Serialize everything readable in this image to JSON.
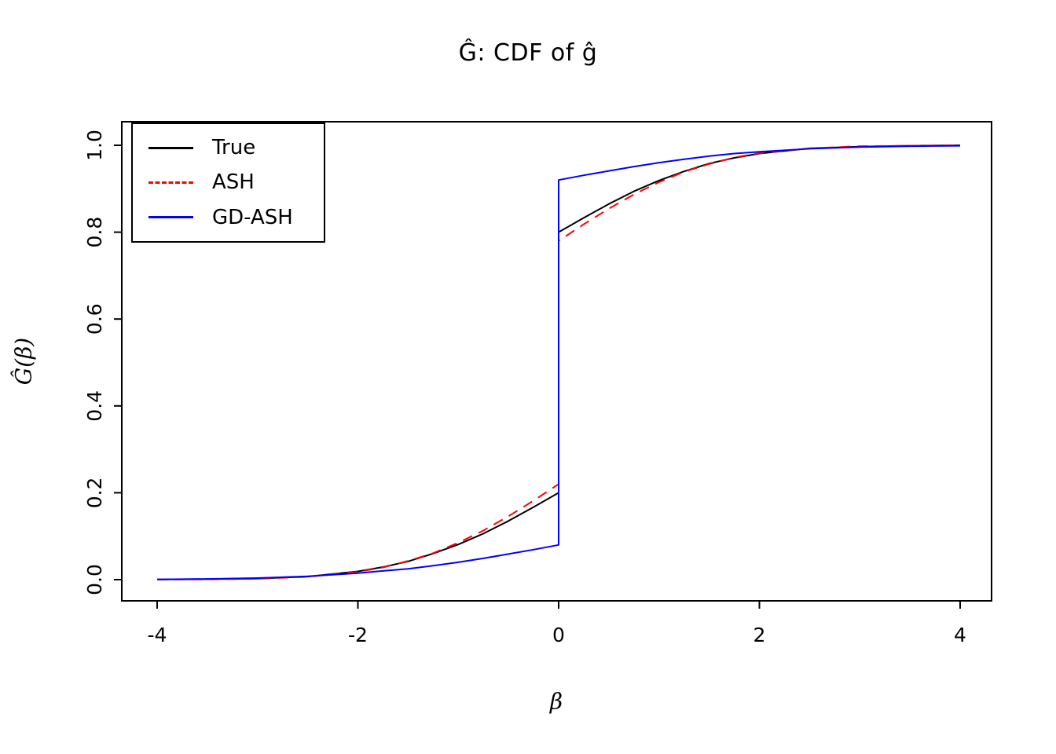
{
  "title": "Ĝ: CDF of ĝ",
  "axes": {
    "xlabel": "β",
    "ylabel": "Ĝ(β)",
    "x_ticks": [
      "-4",
      "-2",
      "0",
      "2",
      "4"
    ],
    "x_tick_values": [
      -4,
      -2,
      0,
      2,
      4
    ],
    "y_ticks": [
      "0.0",
      "0.2",
      "0.4",
      "0.6",
      "0.8",
      "1.0"
    ],
    "y_tick_values": [
      0,
      0.2,
      0.4,
      0.6,
      0.8,
      1.0
    ]
  },
  "legend": {
    "position": "top-left",
    "entries": [
      {
        "label": "True",
        "color": "#000000",
        "style": "solid"
      },
      {
        "label": "ASH",
        "color": "#ff0000",
        "style": "dashed"
      },
      {
        "label": "GD-ASH",
        "color": "#0000ff",
        "style": "solid"
      }
    ]
  },
  "chart_data": {
    "type": "line",
    "title": "Ĝ: CDF of ĝ",
    "xlabel": "β",
    "ylabel": "Ĝ(β)",
    "xlim": [
      -4,
      4
    ],
    "ylim": [
      0,
      1
    ],
    "grid": false,
    "legend_position": "top-left",
    "note": "Step discontinuity at beta=0 for all three CDFs (point mass at zero); x=0 duplicated to encode the jump",
    "series": [
      {
        "name": "True",
        "color": "#000000",
        "style": "solid",
        "x": [
          -4,
          -3.5,
          -3,
          -2.5,
          -2,
          -1.75,
          -1.5,
          -1.25,
          -1,
          -0.75,
          -0.5,
          -0.25,
          0,
          0,
          0.25,
          0.5,
          0.75,
          1,
          1.25,
          1.5,
          1.75,
          2,
          2.5,
          3,
          3.5,
          4
        ],
        "y": [
          0.0004,
          0.001,
          0.0025,
          0.007,
          0.019,
          0.029,
          0.042,
          0.06,
          0.081,
          0.106,
          0.135,
          0.167,
          0.2,
          0.8,
          0.833,
          0.865,
          0.894,
          0.919,
          0.94,
          0.958,
          0.971,
          0.981,
          0.993,
          0.997,
          0.999,
          1.0
        ]
      },
      {
        "name": "ASH",
        "color": "#ff0000",
        "style": "dashed",
        "x": [
          -4,
          -3.5,
          -3,
          -2.5,
          -2,
          -1.75,
          -1.5,
          -1.25,
          -1,
          -0.75,
          -0.5,
          -0.25,
          0,
          0,
          0.25,
          0.5,
          0.75,
          1,
          1.25,
          1.5,
          1.75,
          2,
          2.5,
          3,
          3.5,
          4
        ],
        "y": [
          0.0001,
          0.0006,
          0.002,
          0.0066,
          0.018,
          0.028,
          0.043,
          0.061,
          0.085,
          0.113,
          0.146,
          0.182,
          0.22,
          0.78,
          0.818,
          0.854,
          0.887,
          0.915,
          0.939,
          0.957,
          0.972,
          0.982,
          0.993,
          0.998,
          0.999,
          1.0
        ]
      },
      {
        "name": "GD-ASH",
        "color": "#0000ff",
        "style": "solid",
        "x": [
          -4,
          -3.5,
          -3,
          -2.5,
          -2,
          -1.75,
          -1.5,
          -1.25,
          -1,
          -0.75,
          -0.5,
          -0.25,
          0,
          0,
          0.25,
          0.5,
          0.75,
          1,
          1.25,
          1.5,
          1.75,
          2,
          2.5,
          3,
          3.5,
          4
        ],
        "y": [
          0.0006,
          0.0016,
          0.0036,
          0.0076,
          0.015,
          0.02,
          0.025,
          0.032,
          0.04,
          0.049,
          0.059,
          0.069,
          0.08,
          0.92,
          0.931,
          0.941,
          0.951,
          0.96,
          0.968,
          0.975,
          0.981,
          0.985,
          0.992,
          0.996,
          0.998,
          0.999
        ]
      }
    ]
  }
}
